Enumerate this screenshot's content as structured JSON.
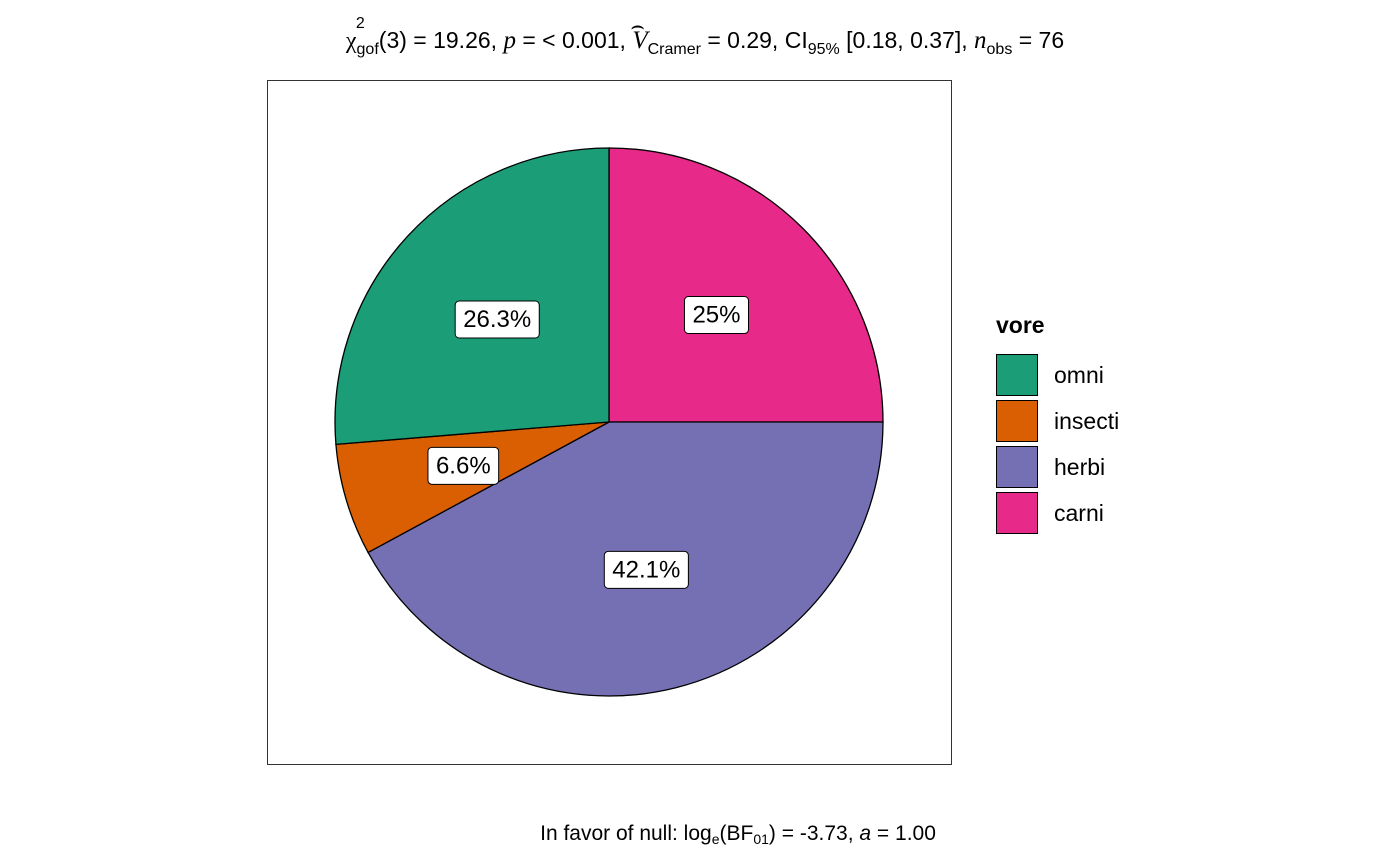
{
  "subtitle": {
    "chi_symbol": "χ",
    "chi_sup": "2",
    "chi_sub": "gof",
    "df": "(3) = 19.26, ",
    "p_sym": "p",
    "p_text": " = < 0.001, ",
    "v_sym": "V",
    "v_sub": "Cramer",
    "v_text": " = 0.29, CI",
    "ci_sub": "95%",
    "ci_text": " [0.18, 0.37], ",
    "n_sym": "n",
    "n_sub": "obs",
    "n_text": " = 76"
  },
  "caption": {
    "prefix": "In favor of null: log",
    "log_sub": "e",
    "bf_open": "(BF",
    "bf_sub": "01",
    "bf_text": ") = -3.73, ",
    "a_sym": "a",
    "a_text": " = 1.00"
  },
  "chart_data": {
    "type": "pie",
    "slices": [
      {
        "label": "carni",
        "value": 25.0,
        "display": "25%",
        "color": "#E7298A"
      },
      {
        "label": "herbi",
        "value": 42.1,
        "display": "42.1%",
        "color": "#7570B3"
      },
      {
        "label": "insecti",
        "value": 6.6,
        "display": "6.6%",
        "color": "#D95F02"
      },
      {
        "label": "omni",
        "value": 26.3,
        "display": "26.3%",
        "color": "#1B9E77"
      }
    ],
    "start": "12 o'clock",
    "direction": "clockwise",
    "legend": {
      "title": "vore",
      "position": "right",
      "entries": [
        {
          "label": "omni",
          "color": "#1B9E77"
        },
        {
          "label": "insecti",
          "color": "#D95F02"
        },
        {
          "label": "herbi",
          "color": "#7570B3"
        },
        {
          "label": "carni",
          "color": "#E7298A"
        }
      ]
    }
  }
}
